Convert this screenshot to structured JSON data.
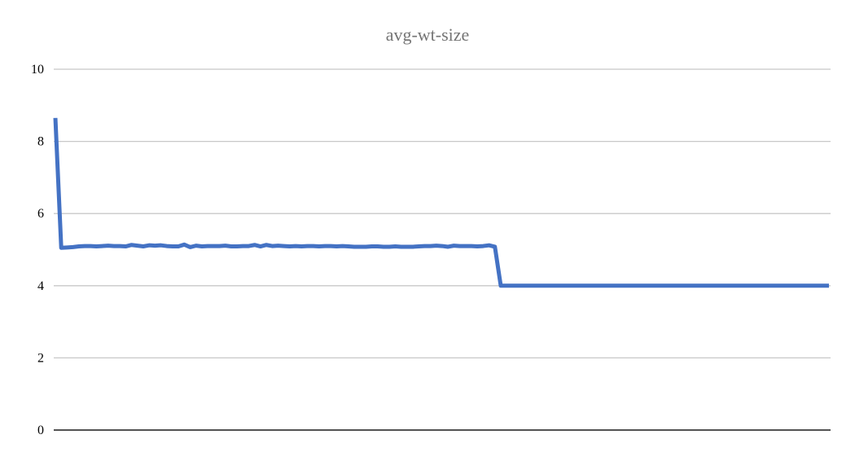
{
  "chart_data": {
    "type": "line",
    "title": "avg-wt-size",
    "xlabel": "",
    "ylabel": "",
    "ylim": [
      0,
      10
    ],
    "yticks": [
      "0",
      "2",
      "4",
      "6",
      "8",
      "10"
    ],
    "grid": true,
    "legend": "none",
    "colors": {
      "series": "#4472C4",
      "grid": "#c8c8c8",
      "title": "#757575"
    },
    "series": [
      {
        "name": "avg-wt-size",
        "values": [
          8.65,
          5.05,
          5.06,
          5.07,
          5.09,
          5.1,
          5.1,
          5.09,
          5.1,
          5.11,
          5.1,
          5.1,
          5.09,
          5.13,
          5.11,
          5.09,
          5.12,
          5.11,
          5.12,
          5.1,
          5.09,
          5.09,
          5.14,
          5.07,
          5.11,
          5.09,
          5.1,
          5.1,
          5.1,
          5.11,
          5.09,
          5.09,
          5.1,
          5.1,
          5.13,
          5.09,
          5.13,
          5.1,
          5.11,
          5.1,
          5.09,
          5.1,
          5.09,
          5.1,
          5.1,
          5.09,
          5.1,
          5.1,
          5.09,
          5.1,
          5.09,
          5.08,
          5.08,
          5.08,
          5.09,
          5.09,
          5.08,
          5.08,
          5.09,
          5.08,
          5.08,
          5.08,
          5.09,
          5.1,
          5.1,
          5.11,
          5.1,
          5.08,
          5.11,
          5.1,
          5.1,
          5.1,
          5.09,
          5.1,
          5.12,
          5.08,
          4.0,
          4.0,
          4.0,
          4.0,
          4.0,
          4.0,
          4.0,
          4.0,
          4.0,
          4.0,
          4.0,
          4.0,
          4.0,
          4.0,
          4.0,
          4.0,
          4.0,
          4.0,
          4.0,
          4.0,
          4.0,
          4.0,
          4.0,
          4.0,
          4.0,
          4.0,
          4.0,
          4.0,
          4.0,
          4.0,
          4.0,
          4.0,
          4.0,
          4.0,
          4.0,
          4.0,
          4.0,
          4.0,
          4.0,
          4.0,
          4.0,
          4.0,
          4.0,
          4.0,
          4.0,
          4.0,
          4.0,
          4.0,
          4.0,
          4.0,
          4.0,
          4.0,
          4.0,
          4.0,
          4.0,
          4.0,
          4.0
        ]
      }
    ]
  }
}
